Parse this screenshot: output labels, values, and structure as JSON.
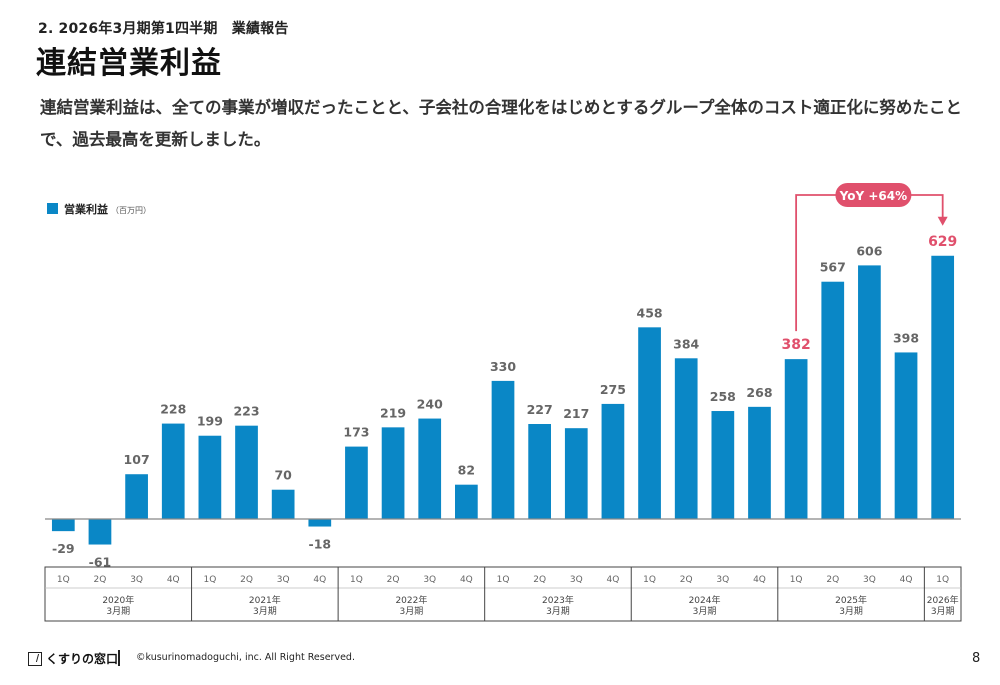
{
  "header": {
    "section_label": "2. 2026年3月期第1四半期　業績報告",
    "title": "連結営業利益",
    "description": "連結営業利益は、全ての事業が増収だったことと、子会社の合理化をはじめとするグループ全体のコスト適正化に努めたことで、過去最高を更新しました。"
  },
  "colors": {
    "bar": "#0a87c6",
    "highlight": "#e0506c",
    "axis": "#888888",
    "label": "#666666"
  },
  "chart_data": {
    "type": "bar",
    "legend": {
      "label": "営業利益",
      "unit": "（百万円）",
      "position": "top-left"
    },
    "series": [
      {
        "name": "営業利益",
        "values": [
          -29,
          -61,
          107,
          228,
          199,
          223,
          70,
          -18,
          173,
          219,
          240,
          82,
          330,
          227,
          217,
          275,
          458,
          384,
          258,
          268,
          382,
          567,
          606,
          398,
          629
        ]
      }
    ],
    "categories": [
      "1Q",
      "2Q",
      "3Q",
      "4Q",
      "1Q",
      "2Q",
      "3Q",
      "4Q",
      "1Q",
      "2Q",
      "3Q",
      "4Q",
      "1Q",
      "2Q",
      "3Q",
      "4Q",
      "1Q",
      "2Q",
      "3Q",
      "4Q",
      "1Q",
      "2Q",
      "3Q",
      "4Q",
      "1Q"
    ],
    "years": [
      {
        "label": "2020年",
        "sublabel": "3月期",
        "count": 4
      },
      {
        "label": "2021年",
        "sublabel": "3月期",
        "count": 4
      },
      {
        "label": "2022年",
        "sublabel": "3月期",
        "count": 4
      },
      {
        "label": "2023年",
        "sublabel": "3月期",
        "count": 4
      },
      {
        "label": "2024年",
        "sublabel": "3月期",
        "count": 4
      },
      {
        "label": "2025年",
        "sublabel": "3月期",
        "count": 4
      },
      {
        "label": "2026年",
        "sublabel": "3月期",
        "count": 1
      }
    ],
    "highlighted_indices": [
      20,
      24
    ],
    "annotation": {
      "text": "YoY +64%",
      "from_index": 20,
      "to_index": 24
    },
    "ylim": [
      -70,
      660
    ],
    "grid": false
  },
  "footer": {
    "brand": "くすりの窓口",
    "copyright": "©kusurinomadoguchi, inc. All Right Reserved.",
    "page_number": "8"
  }
}
